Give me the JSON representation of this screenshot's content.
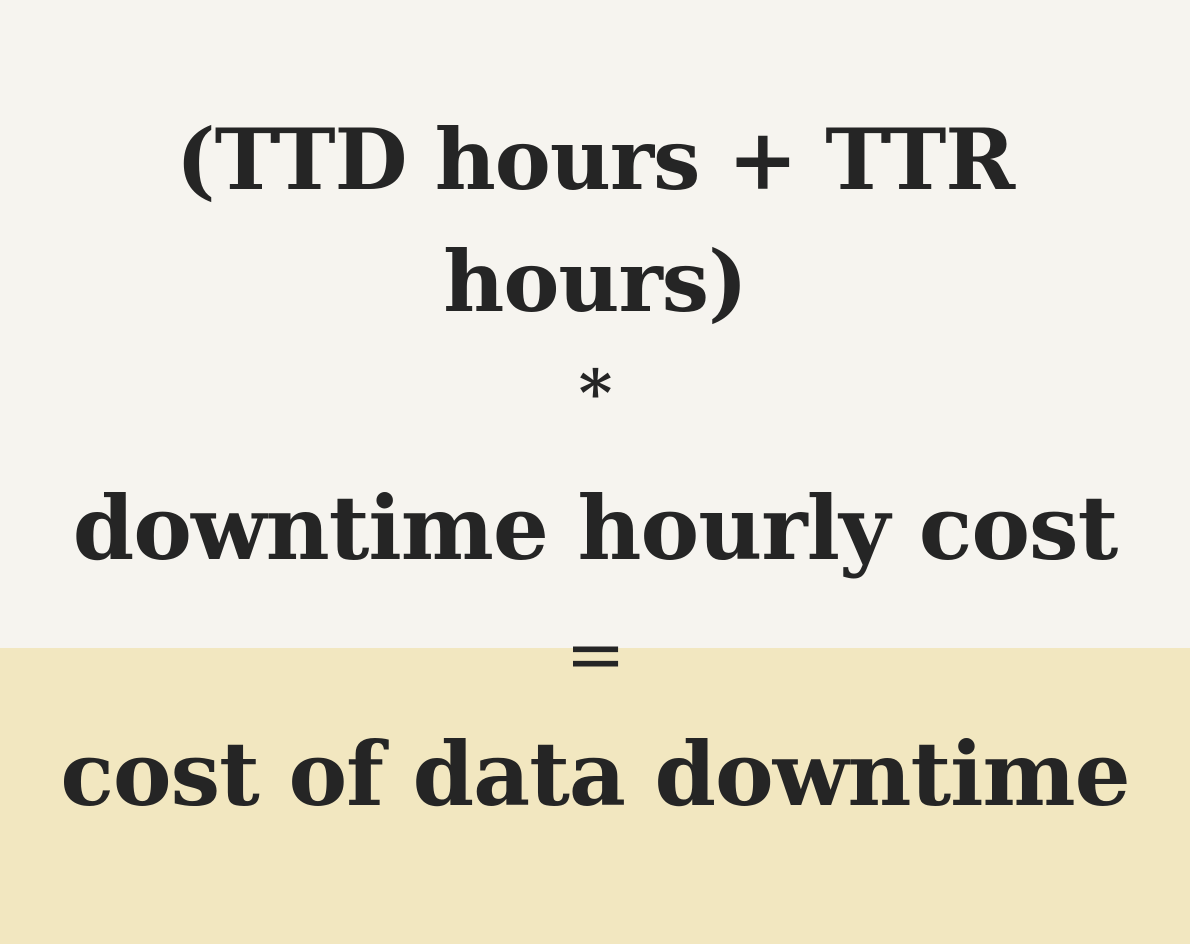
{
  "formula": {
    "line1": "(TTD hours + TTR",
    "line2": "hours)",
    "multiply_operator": "*",
    "line3": "downtime hourly cost",
    "equals_operator": "=",
    "result": "cost of data downtime"
  },
  "colors": {
    "top_background": "#f6f4ef",
    "bottom_background": "#f2e7c0",
    "text": "#252525"
  }
}
